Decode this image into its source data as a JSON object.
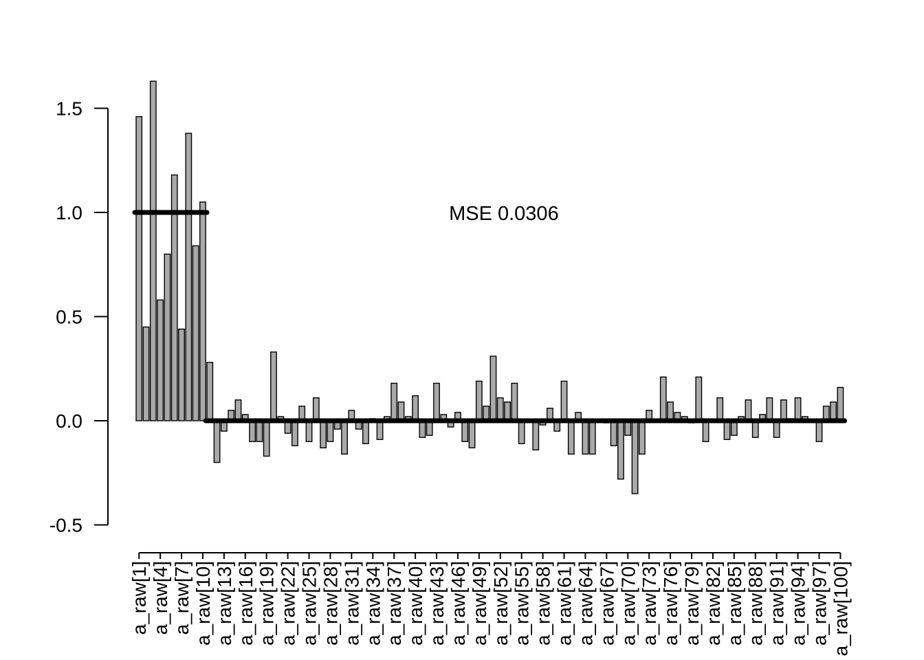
{
  "chart_data": {
    "type": "bar",
    "title": "",
    "xlabel": "",
    "ylabel": "",
    "ylim": [
      -0.5,
      1.75
    ],
    "yticks": [
      -0.5,
      0.0,
      0.5,
      1.0,
      1.5
    ],
    "ytick_labels": [
      "-0.5",
      "0.0",
      "0.5",
      "1.0",
      "1.5"
    ],
    "grid": false,
    "bar_color": "#a9a9a9",
    "bar_edge_color": "#000000",
    "categories": [
      "a_raw[1]",
      "a_raw[2]",
      "a_raw[3]",
      "a_raw[4]",
      "a_raw[5]",
      "a_raw[6]",
      "a_raw[7]",
      "a_raw[8]",
      "a_raw[9]",
      "a_raw[10]",
      "a_raw[11]",
      "a_raw[12]",
      "a_raw[13]",
      "a_raw[14]",
      "a_raw[15]",
      "a_raw[16]",
      "a_raw[17]",
      "a_raw[18]",
      "a_raw[19]",
      "a_raw[20]",
      "a_raw[21]",
      "a_raw[22]",
      "a_raw[23]",
      "a_raw[24]",
      "a_raw[25]",
      "a_raw[26]",
      "a_raw[27]",
      "a_raw[28]",
      "a_raw[29]",
      "a_raw[30]",
      "a_raw[31]",
      "a_raw[32]",
      "a_raw[33]",
      "a_raw[34]",
      "a_raw[35]",
      "a_raw[36]",
      "a_raw[37]",
      "a_raw[38]",
      "a_raw[39]",
      "a_raw[40]",
      "a_raw[41]",
      "a_raw[42]",
      "a_raw[43]",
      "a_raw[44]",
      "a_raw[45]",
      "a_raw[46]",
      "a_raw[47]",
      "a_raw[48]",
      "a_raw[49]",
      "a_raw[50]",
      "a_raw[51]",
      "a_raw[52]",
      "a_raw[53]",
      "a_raw[54]",
      "a_raw[55]",
      "a_raw[56]",
      "a_raw[57]",
      "a_raw[58]",
      "a_raw[59]",
      "a_raw[60]",
      "a_raw[61]",
      "a_raw[62]",
      "a_raw[63]",
      "a_raw[64]",
      "a_raw[65]",
      "a_raw[66]",
      "a_raw[67]",
      "a_raw[68]",
      "a_raw[69]",
      "a_raw[70]",
      "a_raw[71]",
      "a_raw[72]",
      "a_raw[73]",
      "a_raw[74]",
      "a_raw[75]",
      "a_raw[76]",
      "a_raw[77]",
      "a_raw[78]",
      "a_raw[79]",
      "a_raw[80]",
      "a_raw[81]",
      "a_raw[82]",
      "a_raw[83]",
      "a_raw[84]",
      "a_raw[85]",
      "a_raw[86]",
      "a_raw[87]",
      "a_raw[88]",
      "a_raw[89]",
      "a_raw[90]",
      "a_raw[91]",
      "a_raw[92]",
      "a_raw[93]",
      "a_raw[94]",
      "a_raw[95]",
      "a_raw[96]",
      "a_raw[97]",
      "a_raw[98]",
      "a_raw[99]",
      "a_raw[100]"
    ],
    "xtick_labels": [
      "a_raw[1]",
      "a_raw[4]",
      "a_raw[7]",
      "a_raw[10]",
      "a_raw[13]",
      "a_raw[16]",
      "a_raw[19]",
      "a_raw[22]",
      "a_raw[25]",
      "a_raw[28]",
      "a_raw[31]",
      "a_raw[34]",
      "a_raw[37]",
      "a_raw[40]",
      "a_raw[43]",
      "a_raw[46]",
      "a_raw[49]",
      "a_raw[52]",
      "a_raw[55]",
      "a_raw[58]",
      "a_raw[61]",
      "a_raw[64]",
      "a_raw[67]",
      "a_raw[70]",
      "a_raw[73]",
      "a_raw[76]",
      "a_raw[79]",
      "a_raw[82]",
      "a_raw[85]",
      "a_raw[88]",
      "a_raw[91]",
      "a_raw[94]",
      "a_raw[97]",
      "a_raw[100]"
    ],
    "values": [
      1.46,
      0.45,
      1.63,
      0.58,
      0.8,
      1.18,
      0.44,
      1.38,
      0.84,
      1.05,
      0.28,
      -0.2,
      -0.05,
      0.05,
      0.1,
      0.03,
      -0.1,
      -0.1,
      -0.17,
      0.33,
      0.02,
      -0.06,
      -0.12,
      0.07,
      -0.1,
      0.11,
      -0.13,
      -0.1,
      -0.04,
      -0.16,
      0.05,
      -0.04,
      -0.11,
      0.01,
      -0.09,
      0.02,
      0.18,
      0.09,
      0.02,
      0.12,
      -0.08,
      -0.07,
      0.18,
      0.03,
      -0.03,
      0.04,
      -0.1,
      -0.13,
      0.19,
      0.07,
      0.31,
      0.11,
      0.09,
      0.18,
      -0.11,
      0.0,
      -0.14,
      -0.02,
      0.06,
      -0.05,
      0.19,
      -0.16,
      0.04,
      -0.16,
      -0.16,
      0.0,
      -0.01,
      -0.12,
      -0.28,
      -0.07,
      -0.35,
      -0.16,
      0.05,
      0.0,
      0.21,
      0.09,
      0.04,
      0.02,
      -0.01,
      0.21,
      -0.1,
      0.0,
      0.11,
      -0.09,
      -0.07,
      0.02,
      0.1,
      -0.08,
      0.03,
      0.11,
      -0.08,
      0.1,
      0.01,
      0.11,
      0.02,
      0.0,
      -0.1,
      0.07,
      0.09,
      0.16
    ],
    "truth_segments": [
      {
        "from_index": 1,
        "to_index": 10,
        "value": 1.0
      },
      {
        "from_index": 11,
        "to_index": 100,
        "value": 0.0
      }
    ],
    "annotations": [
      {
        "text": "MSE 0.0306",
        "x": 52.5,
        "y": 1.0
      }
    ]
  }
}
